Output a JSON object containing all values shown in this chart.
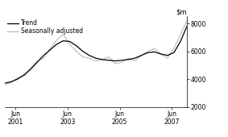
{
  "title": "",
  "ylim": [
    2000,
    8500
  ],
  "yticks": [
    2000,
    4000,
    6000,
    8000
  ],
  "xlim": [
    2001.0,
    2008.0
  ],
  "xtick_positions": [
    2001.417,
    2003.417,
    2005.417,
    2007.417
  ],
  "xtick_labels": [
    "Jun\n2001",
    "Jun\n2003",
    "Jun\n2005",
    "Jun\n2007"
  ],
  "trend_color": "#000000",
  "seasonal_color": "#b0b0b0",
  "trend_lw": 0.9,
  "seasonal_lw": 0.7,
  "legend_labels": [
    "Trend",
    "Seasonally adjusted"
  ],
  "background_color": "#ffffff",
  "trend_x": [
    2001.0,
    2001.25,
    2001.5,
    2001.75,
    2002.0,
    2002.25,
    2002.5,
    2002.75,
    2003.0,
    2003.25,
    2003.5,
    2003.75,
    2004.0,
    2004.25,
    2004.5,
    2004.75,
    2005.0,
    2005.25,
    2005.5,
    2005.75,
    2006.0,
    2006.25,
    2006.5,
    2006.75,
    2007.0,
    2007.25,
    2007.5,
    2007.75,
    2008.0
  ],
  "trend_y": [
    3700,
    3800,
    4000,
    4300,
    4700,
    5200,
    5700,
    6100,
    6500,
    6750,
    6700,
    6400,
    6000,
    5700,
    5500,
    5400,
    5350,
    5300,
    5350,
    5400,
    5500,
    5700,
    5900,
    5950,
    5800,
    5700,
    5900,
    6700,
    7800
  ],
  "seasonal_x": [
    2001.0,
    2001.25,
    2001.5,
    2001.75,
    2002.0,
    2002.25,
    2002.5,
    2002.75,
    2003.0,
    2003.25,
    2003.5,
    2003.75,
    2004.0,
    2004.25,
    2004.5,
    2004.75,
    2005.0,
    2005.25,
    2005.5,
    2005.75,
    2006.0,
    2006.25,
    2006.5,
    2006.75,
    2007.0,
    2007.25,
    2007.5,
    2007.75,
    2008.0
  ],
  "seasonal_y": [
    3600,
    3750,
    4100,
    4200,
    4800,
    5300,
    5500,
    6200,
    6800,
    7200,
    6500,
    6000,
    5600,
    5500,
    5300,
    5400,
    5600,
    5100,
    5200,
    5500,
    5300,
    5700,
    6000,
    6200,
    5800,
    5500,
    6200,
    7200,
    8200
  ]
}
